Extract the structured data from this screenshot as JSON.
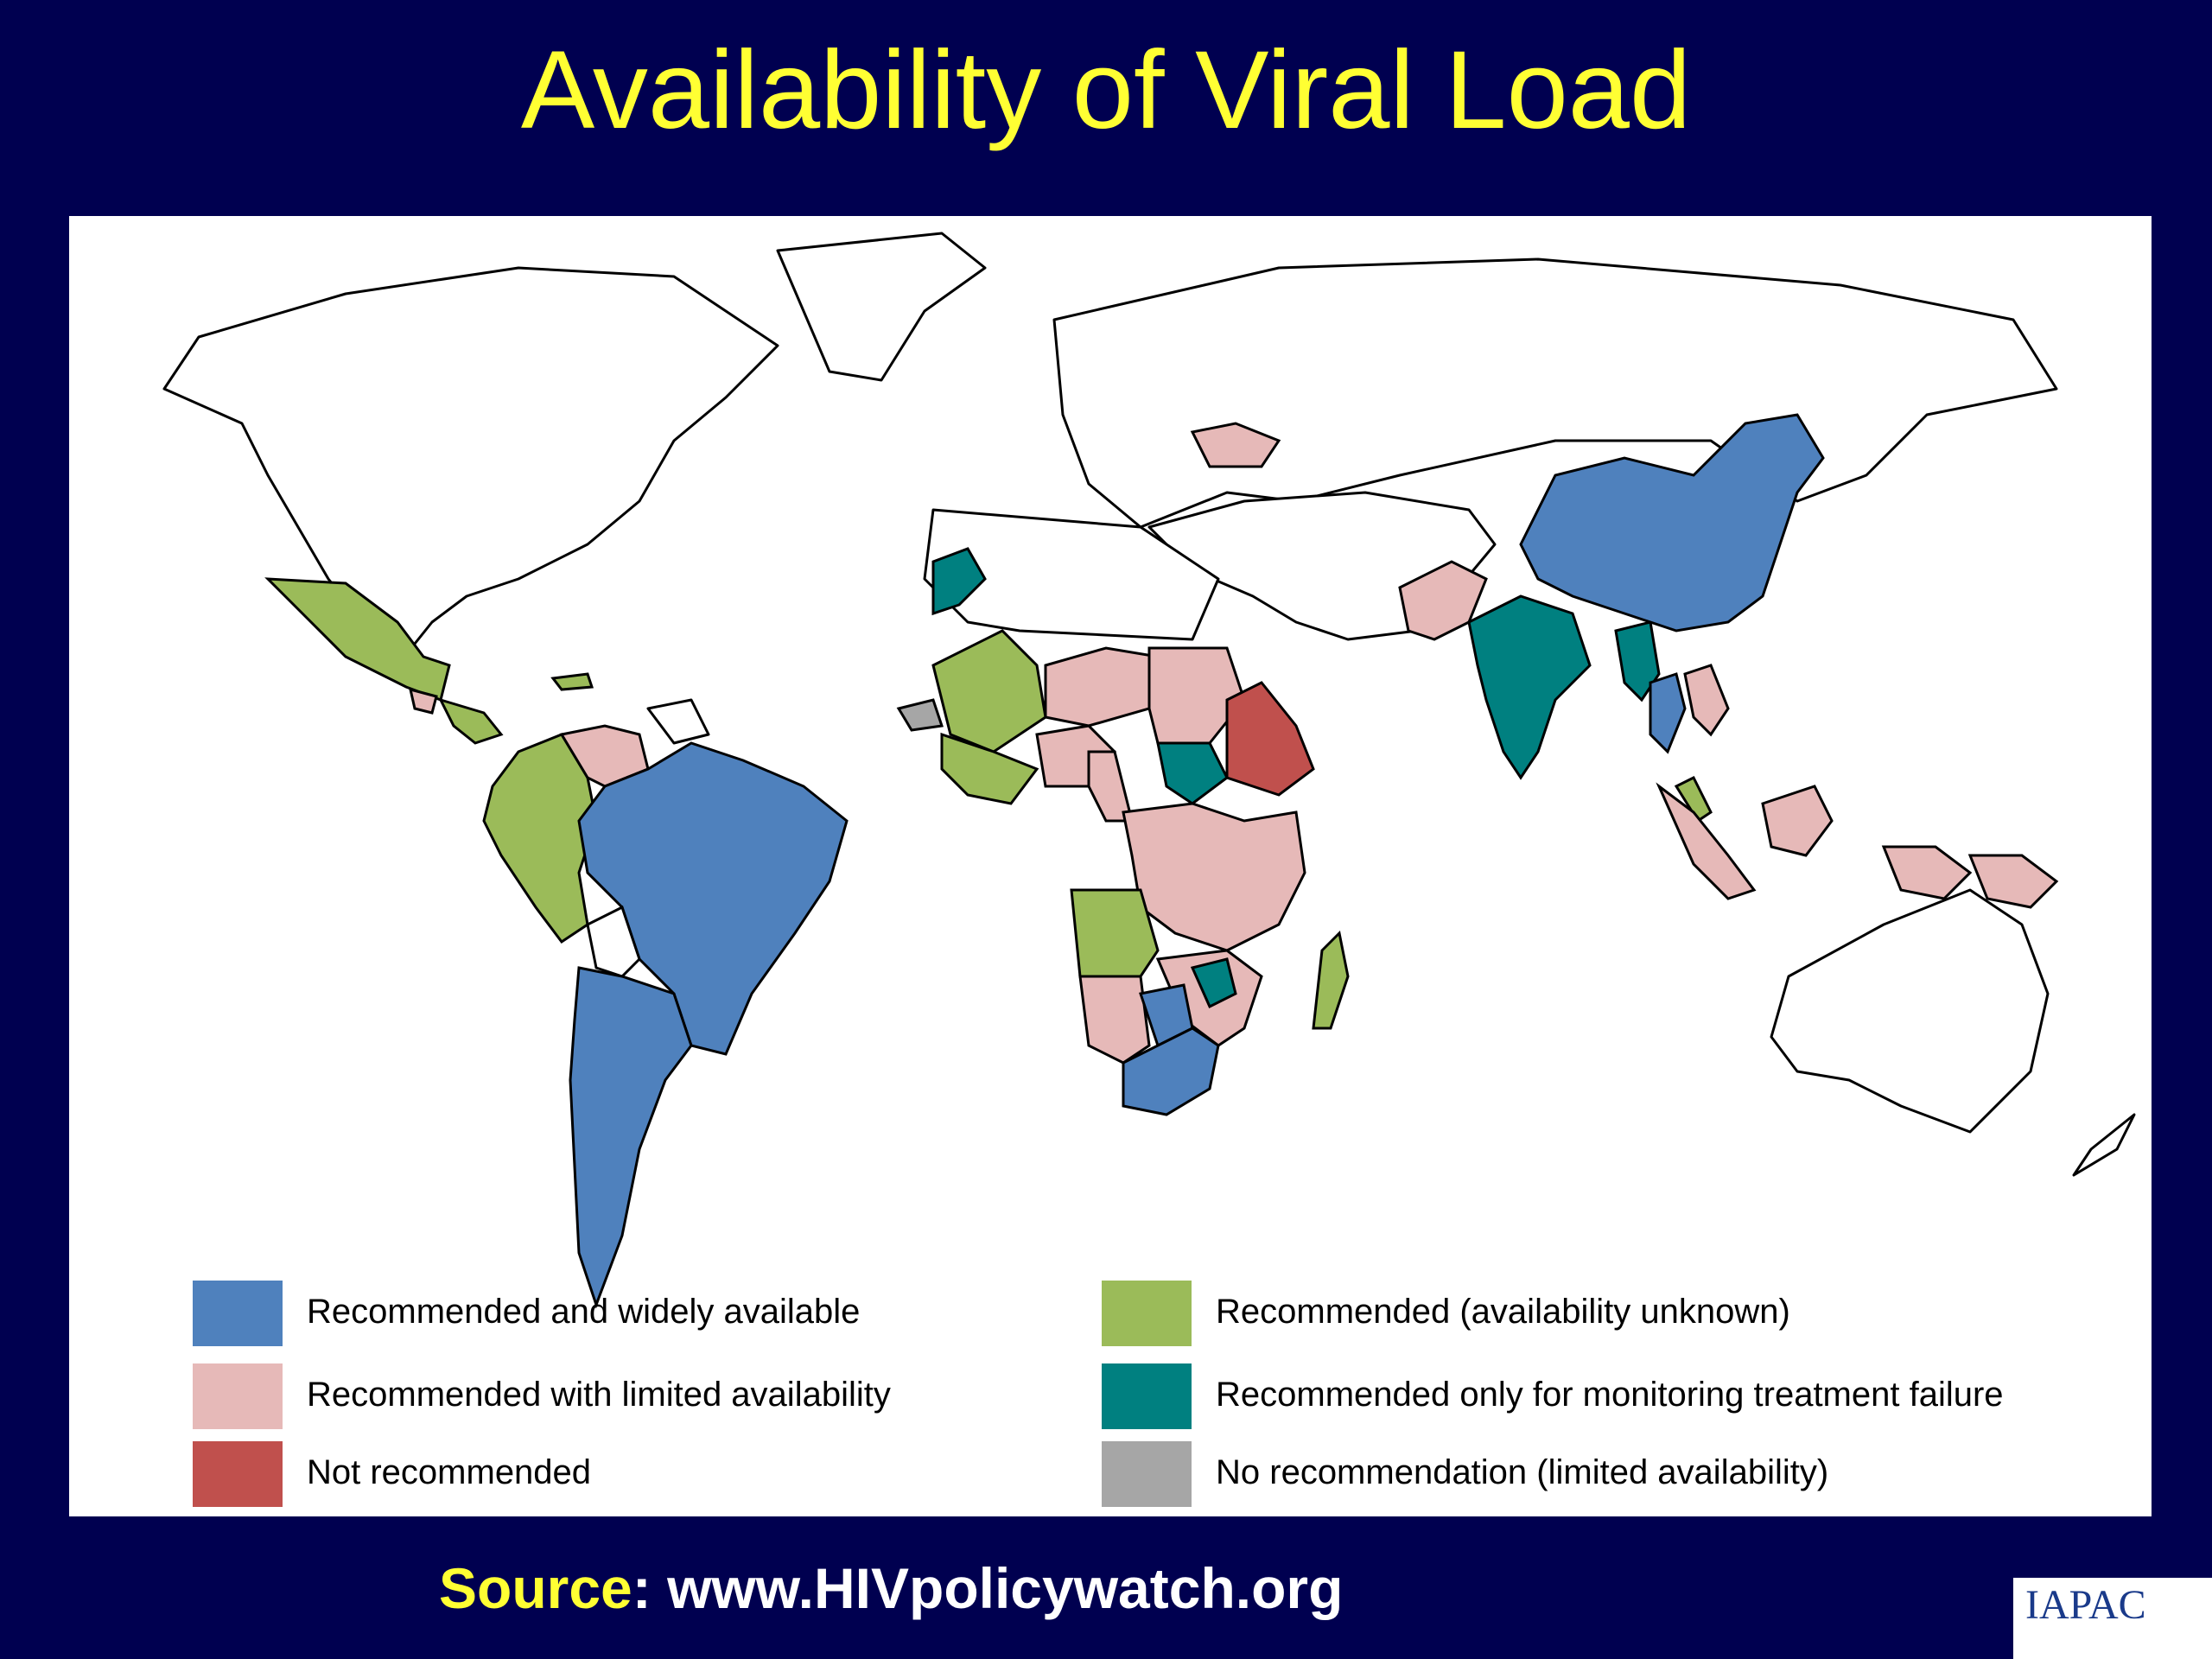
{
  "title": "Availability of Viral Load",
  "colors": {
    "background": "#000050",
    "title": "#ffff33",
    "recommended_widely_available": "#4f81bd",
    "recommended_limited_availability": "#e6b9b8",
    "not_recommended": "#c0504d",
    "recommended_availability_unknown": "#9bbb59",
    "recommended_monitoring_failure": "#008080",
    "no_recommendation": "#a6a6a6",
    "no_data": "#ffffff"
  },
  "legend": [
    {
      "label": "Recommended and widely available",
      "color": "#4f81bd"
    },
    {
      "label": "Recommended with limited availability",
      "color": "#e6b9b8"
    },
    {
      "label": "Not recommended",
      "color": "#c0504d"
    },
    {
      "label": "Recommended (availability unknown)",
      "color": "#9bbb59"
    },
    {
      "label": "Recommended only for monitoring treatment failure",
      "color": "#008080"
    },
    {
      "label": "No recommendation (limited availability)",
      "color": "#a6a6a6"
    }
  ],
  "source": {
    "label": "Source",
    "colon": ":",
    "url": "www.HIVpolicywatch.org"
  },
  "logo": {
    "text": "IAPAC"
  }
}
